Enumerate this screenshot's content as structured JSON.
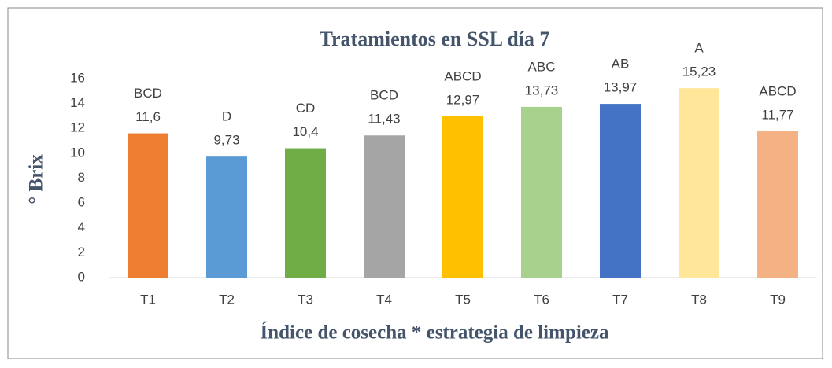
{
  "chart_data": {
    "type": "bar",
    "title": "Tratamientos en SSL día 7",
    "categories": [
      "T1",
      "T2",
      "T3",
      "T4",
      "T5",
      "T6",
      "T7",
      "T8",
      "T9"
    ],
    "values": [
      11.6,
      9.73,
      10.4,
      11.43,
      12.97,
      13.73,
      13.97,
      15.23,
      11.77
    ],
    "value_labels": [
      "11,6",
      "9,73",
      "10,4",
      "11,43",
      "12,97",
      "13,73",
      "13,97",
      "15,23",
      "11,77"
    ],
    "annotations": [
      "BCD",
      "D",
      "CD",
      "BCD",
      "ABCD",
      "ABC",
      "AB",
      "A",
      "ABCD"
    ],
    "colors": [
      "#ed7d31",
      "#5b9bd5",
      "#70ad47",
      "#a5a5a5",
      "#ffc000",
      "#a9d18e",
      "#4472c4",
      "#ffe699",
      "#f4b183"
    ],
    "xlabel": "Índice de cosecha * estrategia de limpieza",
    "ylabel": "° Brix",
    "ylim": [
      0,
      16
    ],
    "yticks": [
      0,
      2,
      4,
      6,
      8,
      10,
      12,
      14,
      16
    ],
    "grid": false
  }
}
